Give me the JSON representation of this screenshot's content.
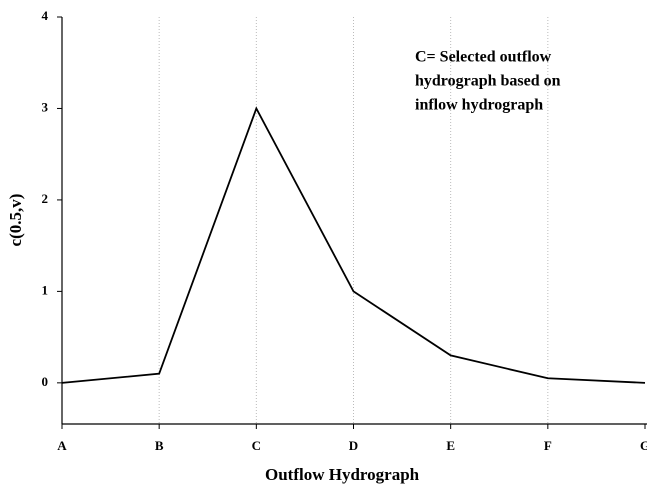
{
  "chart_data": {
    "type": "line",
    "y_label": "c(0.5,v)",
    "x_label": "Outflow Hydrograph",
    "annotation": [
      "C= Selected outflow",
      "hydrograph based on",
      "inflow hydrograph"
    ],
    "categories": [
      "A",
      "B",
      "C",
      "D",
      "E",
      "F",
      "G"
    ],
    "values": [
      0,
      0.1,
      3,
      1,
      0.3,
      0.05,
      0
    ],
    "color": "#000000",
    "ylim": [
      -0.45,
      4
    ],
    "yticks": [
      0,
      1,
      2,
      3,
      4
    ],
    "grid": true
  }
}
